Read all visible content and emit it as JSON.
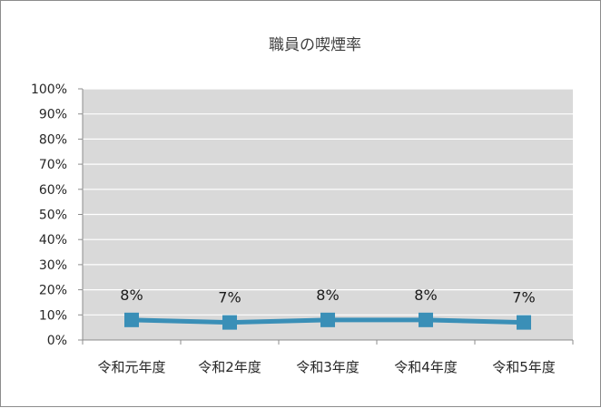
{
  "chart_data": {
    "type": "line",
    "title": "職員の喫煙率",
    "categories": [
      "令和元年度",
      "令和2年度",
      "令和3年度",
      "令和4年度",
      "令和5年度"
    ],
    "series": [
      {
        "values": [
          8,
          7,
          8,
          8,
          7
        ],
        "data_labels": [
          "8%",
          "7%",
          "8%",
          "8%",
          "7%"
        ],
        "color": "#3a8fb7",
        "marker": "square"
      }
    ],
    "ylim": [
      0,
      100
    ],
    "yticks": [
      0,
      10,
      20,
      30,
      40,
      50,
      60,
      70,
      80,
      90,
      100
    ],
    "ytick_labels": [
      "0%",
      "10%",
      "20%",
      "30%",
      "40%",
      "50%",
      "60%",
      "70%",
      "80%",
      "90%",
      "100%"
    ],
    "grid": true,
    "legend": "none",
    "plot_background": "#d9d9d9",
    "gridline_color": "#ffffff"
  }
}
